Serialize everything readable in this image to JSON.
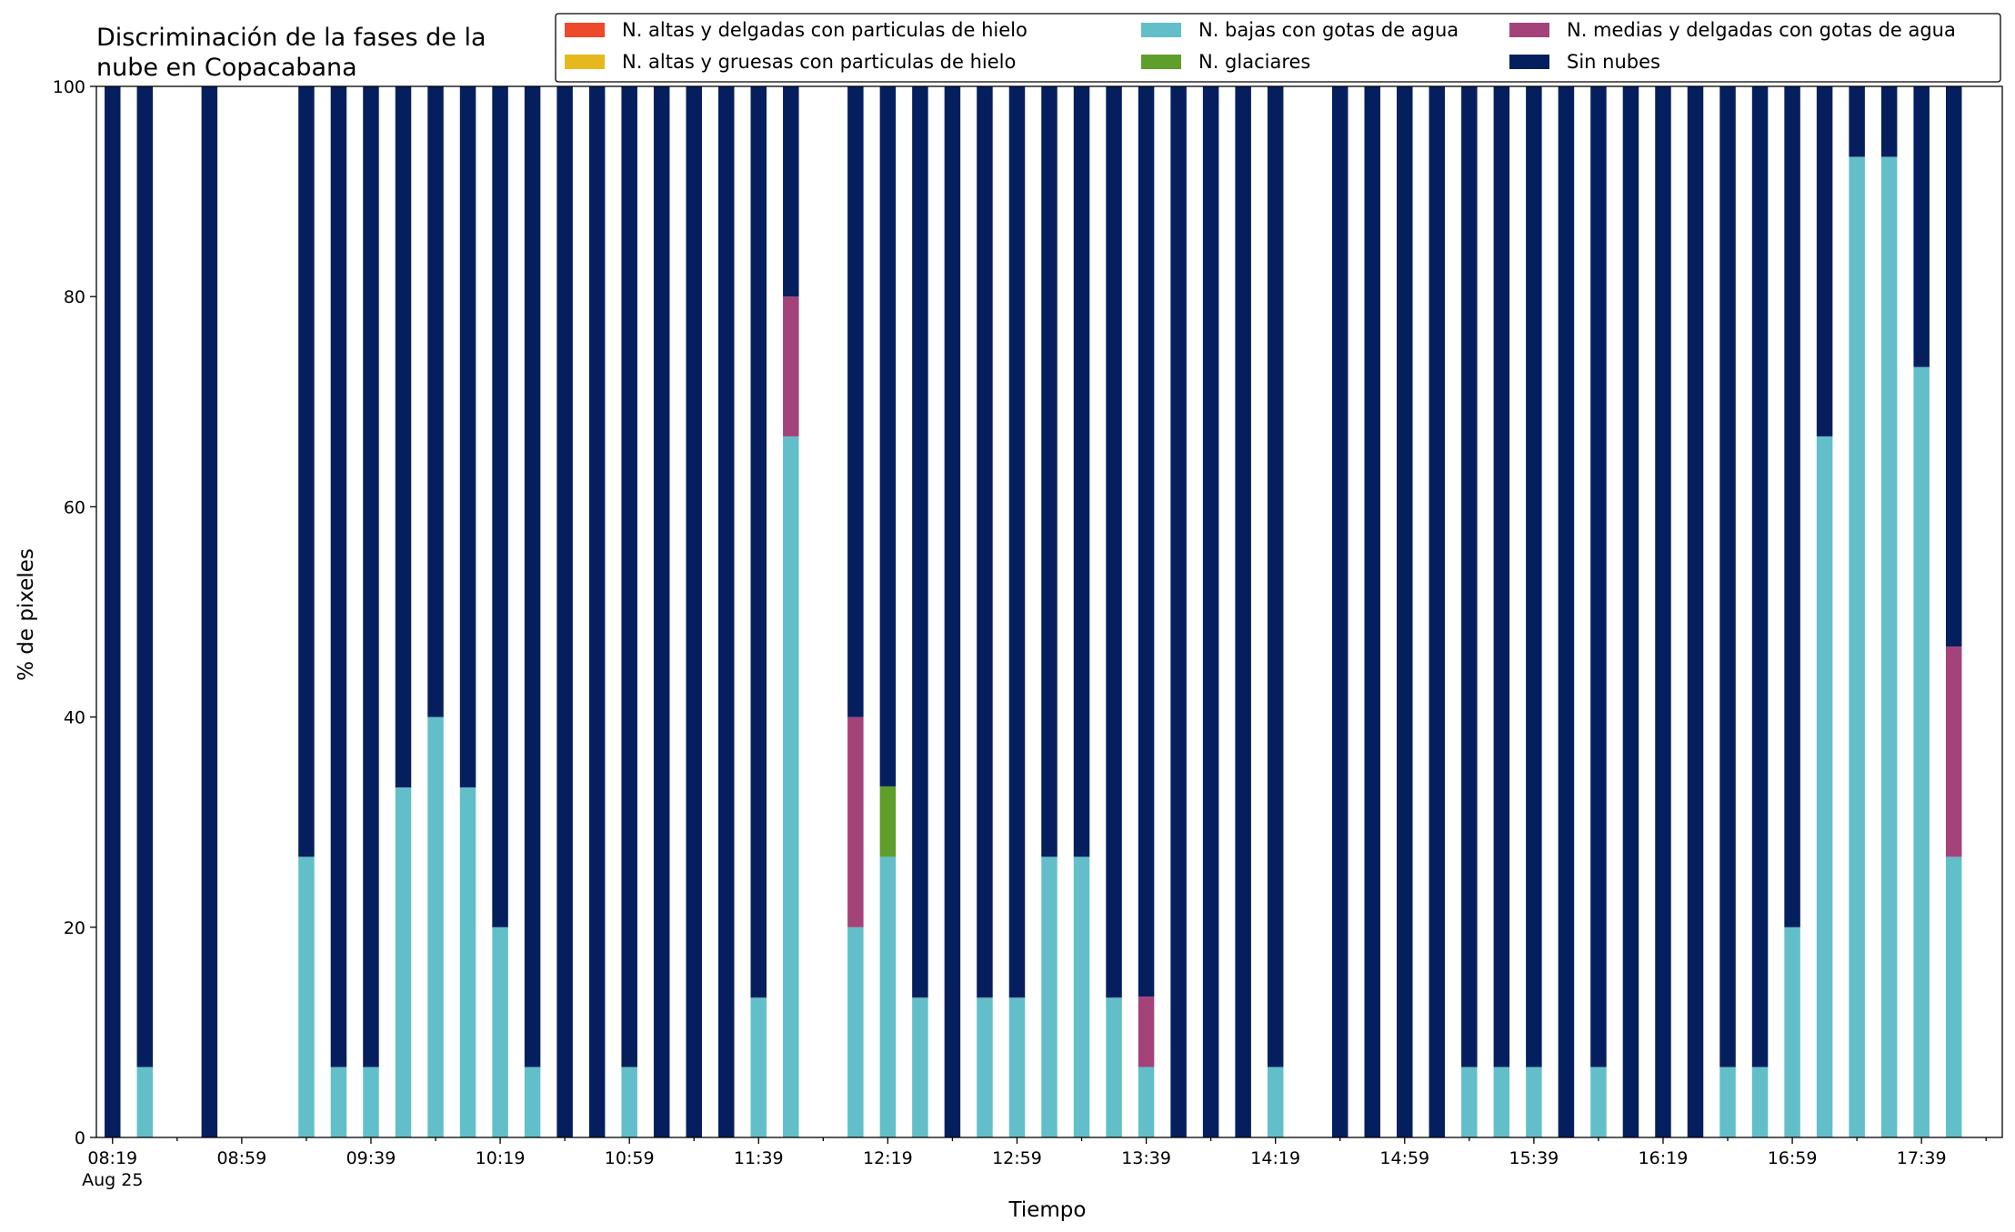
{
  "chart_data": {
    "type": "bar",
    "stacked": true,
    "title_lines": [
      "Discriminación de la fases de la",
      "nube en Copacabana"
    ],
    "xlabel": "Tiempo",
    "ylabel": "% de pixeles",
    "ylim": [
      0,
      100
    ],
    "yticks": [
      0,
      20,
      40,
      60,
      80,
      100
    ],
    "legend_position": "top-right",
    "date_label": "Aug 25",
    "x_start": "08:19",
    "x_end": "17:49",
    "interval_minutes": 10,
    "major_tick_labels": [
      "08:19",
      "08:59",
      "09:39",
      "10:19",
      "10:59",
      "11:39",
      "12:19",
      "12:59",
      "13:39",
      "14:19",
      "14:59",
      "15:39",
      "16:19",
      "16:59",
      "17:39"
    ],
    "legend": [
      {
        "key": "altas_delgadas",
        "label": "N. altas y delgadas con particulas de hielo",
        "color": "#ec4a2b"
      },
      {
        "key": "altas_gruesas",
        "label": "N. altas y gruesas con particulas de hielo",
        "color": "#e5b81e"
      },
      {
        "key": "bajas",
        "label": "N. bajas con gotas de agua",
        "color": "#62bfca"
      },
      {
        "key": "glaciares",
        "label": "N. glaciares",
        "color": "#5e9e2b"
      },
      {
        "key": "medias",
        "label": "N. medias y delgadas con gotas de agua",
        "color": "#a3437a"
      },
      {
        "key": "sin_nubes",
        "label": "Sin nubes",
        "color": "#051f5e"
      }
    ],
    "stack_order": [
      "bajas",
      "glaciares",
      "medias",
      "sin_nubes"
    ],
    "series_values": {
      "bajas": [
        0,
        6.7,
        null,
        0,
        null,
        null,
        26.7,
        6.7,
        6.7,
        33.3,
        40,
        33.3,
        20,
        6.7,
        0,
        0,
        6.7,
        0,
        0,
        0,
        13.3,
        66.7,
        null,
        20,
        26.7,
        13.3,
        0,
        13.3,
        13.3,
        26.7,
        26.7,
        13.3,
        6.7,
        0,
        0,
        0,
        6.7,
        null,
        0,
        0,
        0,
        0,
        6.7,
        6.7,
        6.7,
        0,
        6.7,
        0,
        0,
        0,
        6.7,
        6.7,
        20,
        66.7,
        93.3,
        93.3,
        73.3,
        26.7
      ],
      "glaciares": [
        0,
        0,
        null,
        0,
        null,
        null,
        0,
        0,
        0,
        0,
        0,
        0,
        0,
        0,
        0,
        0,
        0,
        0,
        0,
        0,
        0,
        0,
        null,
        0,
        6.7,
        0,
        0,
        0,
        0,
        0,
        0,
        0,
        0,
        0,
        0,
        0,
        0,
        null,
        0,
        0,
        0,
        0,
        0,
        0,
        0,
        0,
        0,
        0,
        0,
        0,
        0,
        0,
        0,
        0,
        0,
        0,
        0,
        0
      ],
      "medias": [
        0,
        0,
        null,
        0,
        null,
        null,
        0,
        0,
        0,
        0,
        0,
        0,
        0,
        0,
        0,
        0,
        0,
        0,
        0,
        0,
        0,
        13.3,
        null,
        20,
        0,
        0,
        0,
        0,
        0,
        0,
        0,
        0,
        6.7,
        0,
        0,
        0,
        0,
        null,
        0,
        0,
        0,
        0,
        0,
        0,
        0,
        0,
        0,
        0,
        0,
        0,
        0,
        0,
        0,
        0,
        0,
        0,
        0,
        20
      ],
      "sin_nubes": [
        100,
        93.3,
        null,
        100,
        null,
        null,
        73.3,
        93.3,
        93.3,
        66.7,
        60,
        66.7,
        80,
        93.3,
        100,
        100,
        93.3,
        100,
        100,
        100,
        86.7,
        20,
        null,
        60,
        66.6,
        86.7,
        100,
        86.7,
        86.7,
        73.3,
        73.3,
        86.7,
        86.6,
        100,
        100,
        100,
        93.3,
        null,
        100,
        100,
        100,
        100,
        93.3,
        93.3,
        93.3,
        100,
        93.3,
        100,
        100,
        100,
        93.3,
        93.3,
        80,
        33.3,
        6.7,
        6.7,
        26.7,
        53.3
      ]
    }
  }
}
